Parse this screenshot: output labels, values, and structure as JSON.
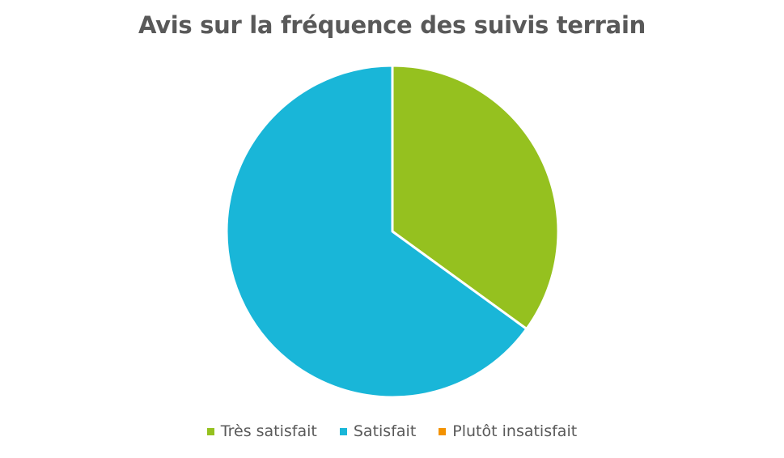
{
  "chart_data": {
    "type": "pie",
    "title": "Avis sur la fréquence des suivis terrain",
    "slices": [
      {
        "label": "Très satisfait",
        "value": 35.0,
        "color": "#95c11f"
      },
      {
        "label": "Satisfait",
        "value": 65.0,
        "color": "#19b6d8"
      },
      {
        "label": "Plutôt insatisfait",
        "value": 0,
        "color": "#f39200"
      }
    ],
    "legend_position": "bottom"
  }
}
